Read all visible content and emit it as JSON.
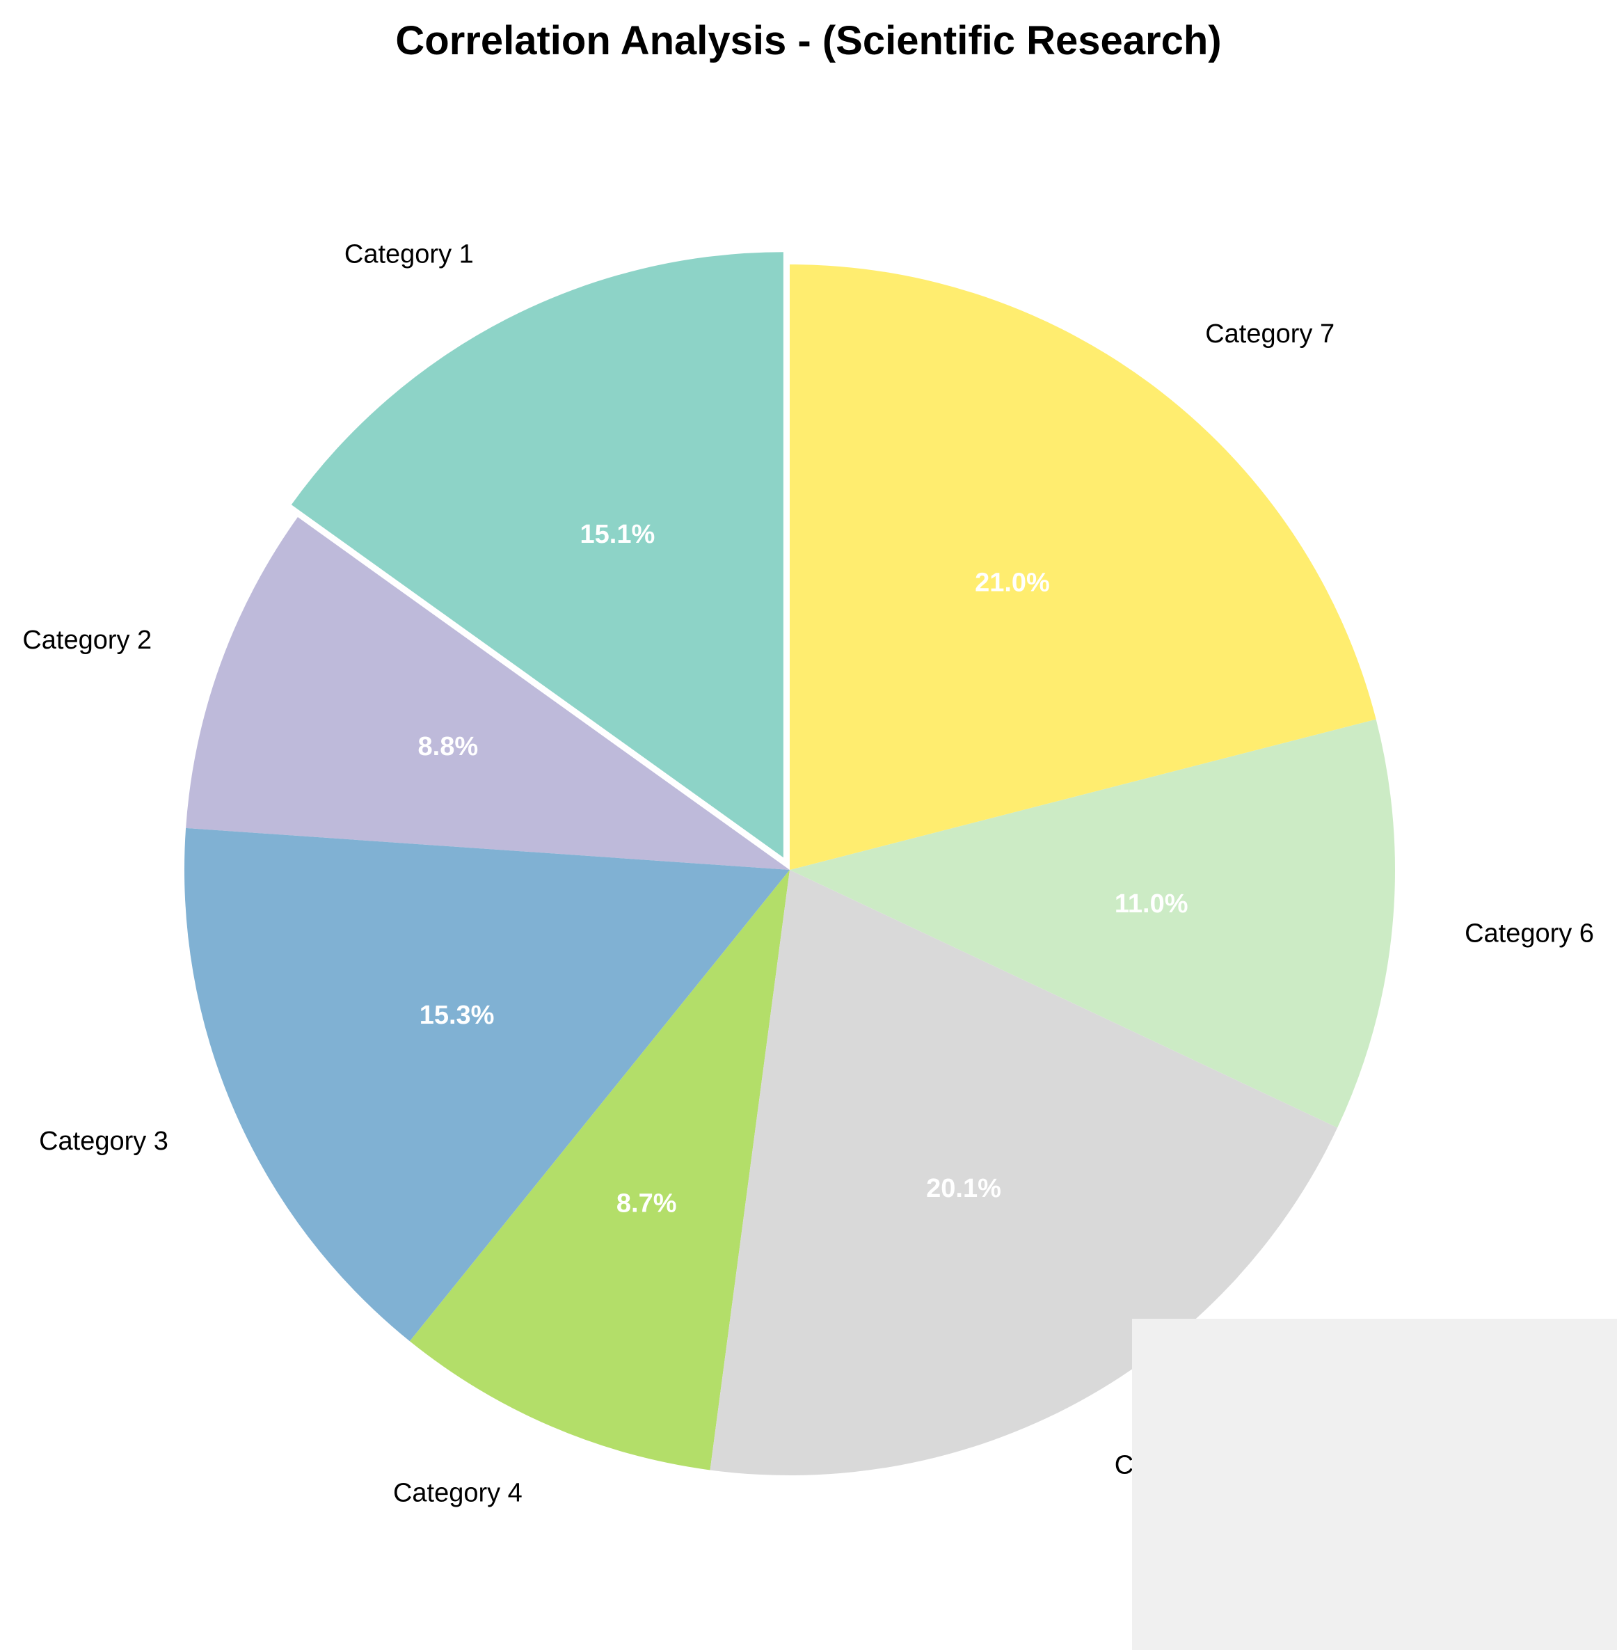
{
  "chart_data": {
    "type": "pie",
    "title": "Correlation Analysis - (Scientific Research)",
    "start_angle_deg": 90,
    "direction": "counterclockwise",
    "exploded": [
      "Category 1"
    ],
    "slices": [
      {
        "label": "Category 1",
        "value": 15.1,
        "pct_label": "15.1%",
        "color": "#8dd3c7"
      },
      {
        "label": "Category 2",
        "value": 8.8,
        "pct_label": "8.8%",
        "color": "#bebada"
      },
      {
        "label": "Category 3",
        "value": 15.3,
        "pct_label": "15.3%",
        "color": "#80b1d3"
      },
      {
        "label": "Category 4",
        "value": 8.7,
        "pct_label": "8.7%",
        "color": "#b3de69"
      },
      {
        "label": "Category 5",
        "value": 20.1,
        "pct_label": "20.1%",
        "color": "#d9d9d9"
      },
      {
        "label": "Category 6",
        "value": 11.0,
        "pct_label": "11.0%",
        "color": "#ccebc5"
      },
      {
        "label": "Category 7",
        "value": 21.0,
        "pct_label": "21.0%",
        "color": "#ffed6f"
      }
    ]
  }
}
